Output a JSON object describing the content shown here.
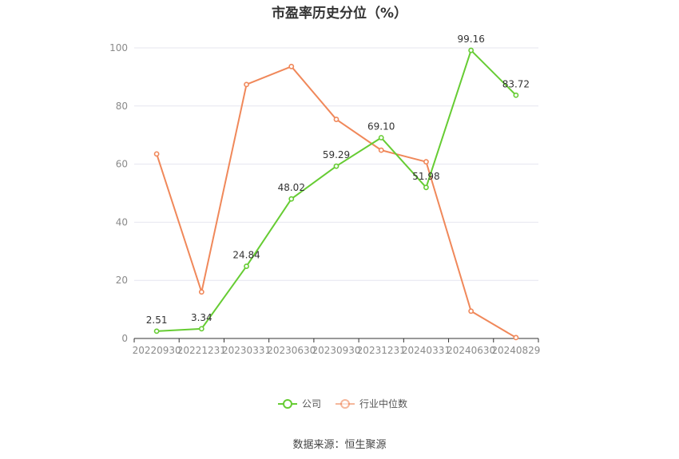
{
  "chart_data": {
    "type": "line",
    "title": "市盈率历史分位（%）",
    "categories": [
      "20220930",
      "20221231",
      "20230331",
      "20230630",
      "20230930",
      "20231231",
      "20240331",
      "20240630",
      "20240829"
    ],
    "series": [
      {
        "name": "公司",
        "color": "#66cc33",
        "values": [
          2.51,
          3.34,
          24.84,
          48.02,
          59.29,
          69.1,
          51.98,
          99.16,
          83.72
        ],
        "labels": [
          "2.51",
          "3.34",
          "24.84",
          "48.02",
          "59.29",
          "69.10",
          "51.98",
          "99.16",
          "83.72"
        ]
      },
      {
        "name": "行业中位数",
        "color": "#f0885a",
        "values": [
          63.5,
          16,
          87.4,
          93.6,
          75.4,
          64.8,
          60.8,
          9.4,
          0.3
        ]
      }
    ],
    "yticks": [
      "0",
      "20",
      "40",
      "60",
      "80",
      "100"
    ],
    "ylim": [
      0,
      100
    ],
    "grid": true,
    "legend": "bottom-center",
    "source": "数据来源：恒生聚源"
  }
}
